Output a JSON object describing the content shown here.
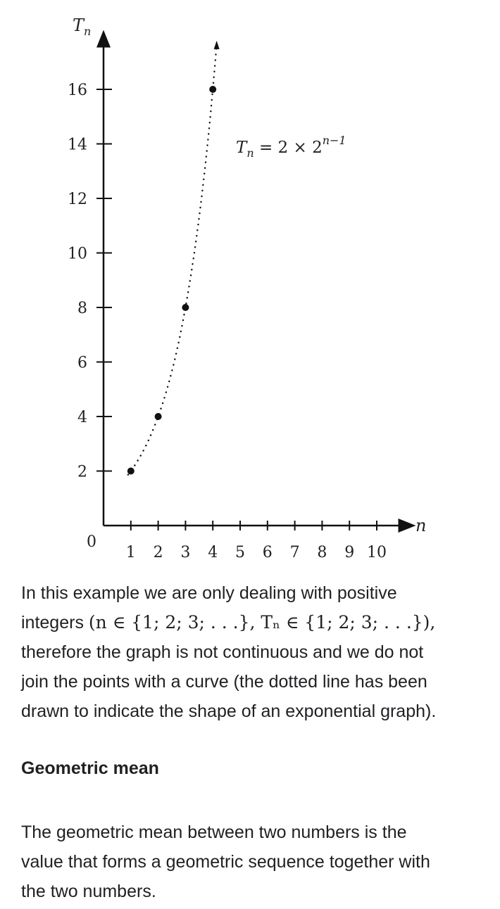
{
  "chart_data": {
    "type": "scatter",
    "x": [
      1,
      2,
      3,
      4
    ],
    "y": [
      2,
      4,
      8,
      16
    ],
    "curve": "dotted",
    "x_tick_labels": [
      "1",
      "2",
      "3",
      "4",
      "5",
      "6",
      "7",
      "8",
      "9",
      "10"
    ],
    "y_tick_labels": [
      "2",
      "4",
      "6",
      "8",
      "10",
      "12",
      "14",
      "16"
    ],
    "origin_label": "0",
    "xlabel": "n",
    "ylabel": "T",
    "ylabel_sub": "n",
    "xlim": [
      0,
      11
    ],
    "ylim": [
      0,
      18
    ],
    "grid": false,
    "annotation": {
      "base": "T",
      "sub": "n",
      "rest": " = 2 × 2",
      "exponent": "n−1"
    }
  },
  "text": {
    "para1_line1": "In this example we are only dealing with positive",
    "para1_line2_start": "integers ",
    "para1_math": "(n ∈ {1; 2; 3; . . .}, Tₙ ∈ {1; 2; 3; . . .}),",
    "para1_line3": "therefore the graph is not continuous and we do not",
    "para1_line4": "join the points with a curve (the dotted line has been",
    "para1_line5": "drawn to indicate the shape of an exponential graph).",
    "heading": "Geometric mean",
    "para2_line1": "The geometric mean between two numbers is the",
    "para2_line2": "value that forms a geometric sequence together with",
    "para2_line3": "the two numbers."
  }
}
